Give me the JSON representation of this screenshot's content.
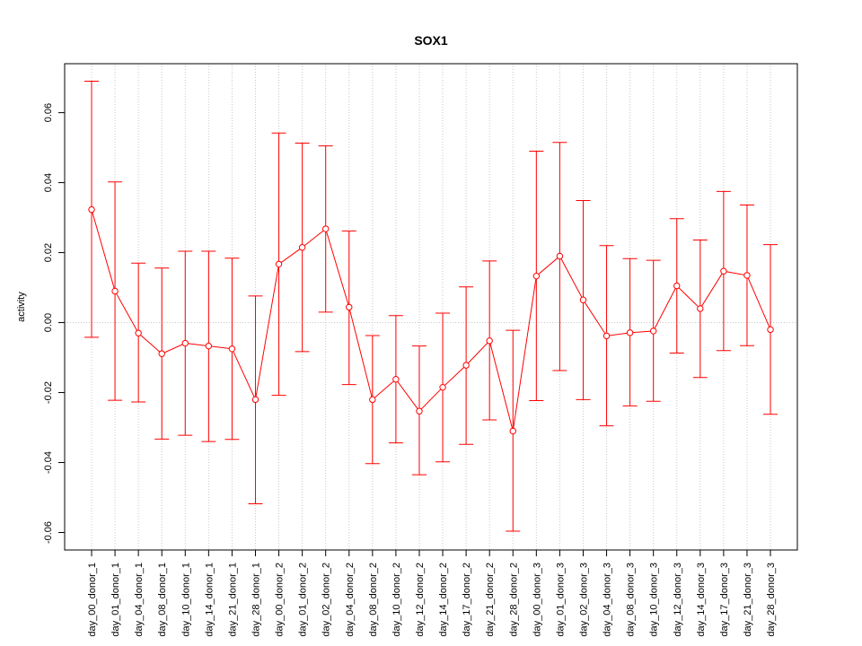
{
  "chart_data": {
    "type": "line",
    "title": "SOX1",
    "xlabel": "",
    "ylabel": "activity",
    "ylim": [
      -0.065,
      0.074
    ],
    "yticks": [
      -0.06,
      -0.04,
      -0.02,
      0.0,
      0.02,
      0.04,
      0.06
    ],
    "ytick_labels": [
      "-0.06",
      "-0.04",
      "-0.02",
      "0.00",
      "0.02",
      "0.04",
      "0.06"
    ],
    "grid": true,
    "series_color": "#ff0000",
    "grid_color": "#c8c8c8",
    "categories": [
      "day_00_donor_1",
      "day_01_donor_1",
      "day_04_donor_1",
      "day_08_donor_1",
      "day_10_donor_1",
      "day_14_donor_1",
      "day_21_donor_1",
      "day_28_donor_1",
      "day_00_donor_2",
      "day_01_donor_2",
      "day_02_donor_2",
      "day_04_donor_2",
      "day_08_donor_2",
      "day_10_donor_2",
      "day_12_donor_2",
      "day_14_donor_2",
      "day_17_donor_2",
      "day_21_donor_2",
      "day_28_donor_2",
      "day_00_donor_3",
      "day_01_donor_3",
      "day_02_donor_3",
      "day_04_donor_3",
      "day_08_donor_3",
      "day_10_donor_3",
      "day_12_donor_3",
      "day_14_donor_3",
      "day_17_donor_3",
      "day_21_donor_3",
      "day_28_donor_3"
    ],
    "values": [
      0.0323,
      0.009,
      -0.003,
      -0.0089,
      -0.0059,
      -0.0067,
      -0.0075,
      -0.022,
      0.0167,
      0.0215,
      0.0268,
      0.0044,
      -0.022,
      -0.0162,
      -0.0253,
      -0.0185,
      -0.0122,
      -0.0052,
      -0.031,
      0.0133,
      0.019,
      0.0065,
      -0.0038,
      -0.0029,
      -0.0024,
      0.0105,
      0.004,
      0.0147,
      0.0135,
      -0.002
    ],
    "upper": [
      0.069,
      0.0402,
      0.017,
      0.0156,
      0.0204,
      0.0204,
      0.0184,
      0.0076,
      0.0542,
      0.0513,
      0.0505,
      0.0262,
      -0.0037,
      0.002,
      -0.0067,
      0.0027,
      0.0102,
      0.0176,
      -0.0022,
      0.049,
      0.0515,
      0.0349,
      0.022,
      0.0183,
      0.0178,
      0.0297,
      0.0236,
      0.0375,
      0.0336,
      0.0223
    ],
    "lower": [
      -0.0042,
      -0.0222,
      -0.0227,
      -0.0333,
      -0.0322,
      -0.034,
      -0.0334,
      -0.0518,
      -0.0208,
      -0.0083,
      0.003,
      -0.0177,
      -0.0403,
      -0.0344,
      -0.0435,
      -0.0398,
      -0.0348,
      -0.0278,
      -0.0596,
      -0.0223,
      -0.0137,
      -0.022,
      -0.0295,
      -0.0238,
      -0.0225,
      -0.0087,
      -0.0157,
      -0.008,
      -0.0066,
      -0.0262
    ]
  }
}
